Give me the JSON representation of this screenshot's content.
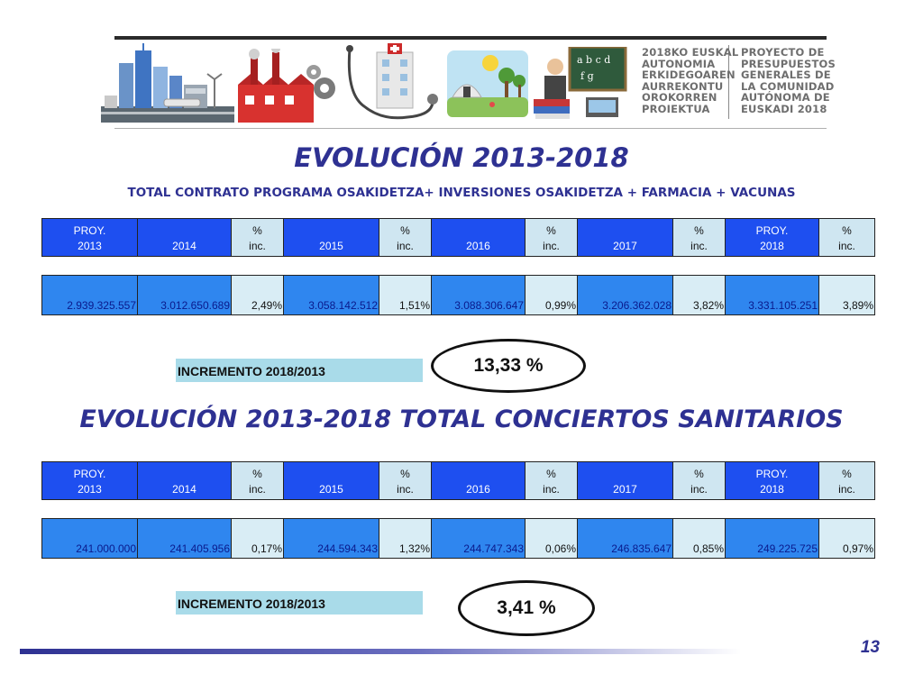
{
  "header": {
    "basque_text": "2018KO EUSKAL\nAUTONOMIA\nERKIDEGOAREN\nAURREKONTU\nOROKORREN\nPROIEKTUA",
    "spanish_text": "PROYECTO DE\nPRESUPUESTOS\nGENERALES DE\nLA COMUNIDAD\nAUTÓNOMA DE\nEUSKADI 2018",
    "illustrations": [
      "city-icon",
      "factory-icon",
      "hospital-stethoscope-icon",
      "park-icon",
      "classroom-icon"
    ]
  },
  "section1": {
    "title": "EVOLUCIÓN 2013-2018",
    "subtitle": "TOTAL CONTRATO PROGRAMA OSAKIDETZA+ INVERSIONES OSAKIDETZA + FARMACIA + VACUNAS",
    "headers": [
      {
        "l1": "PROY.",
        "l2": "2013"
      },
      {
        "l1": "",
        "l2": "2014"
      },
      {
        "l1": "%",
        "l2": "inc."
      },
      {
        "l1": "",
        "l2": "2015"
      },
      {
        "l1": "%",
        "l2": "inc."
      },
      {
        "l1": "",
        "l2": "2016"
      },
      {
        "l1": "%",
        "l2": "inc."
      },
      {
        "l1": "",
        "l2": "2017"
      },
      {
        "l1": "%",
        "l2": "inc."
      },
      {
        "l1": "PROY.",
        "l2": "2018"
      },
      {
        "l1": "%",
        "l2": "inc."
      }
    ],
    "values": [
      "2.939.325.557",
      "3.012.650.689",
      "2,49%",
      "3.058.142.512",
      "1,51%",
      "3.088.306.647",
      "0,99%",
      "3.206.362.028",
      "3,82%",
      "3.331.105.251",
      "3,89%"
    ],
    "increment_label": "INCREMENTO 2018/2013",
    "increment_value": "13,33 %"
  },
  "section2": {
    "title": "EVOLUCIÓN 2013-2018 TOTAL CONCIERTOS  SANITARIOS",
    "headers": [
      {
        "l1": "PROY.",
        "l2": "2013"
      },
      {
        "l1": "",
        "l2": "2014"
      },
      {
        "l1": "%",
        "l2": "inc."
      },
      {
        "l1": "",
        "l2": "2015"
      },
      {
        "l1": "%",
        "l2": "inc."
      },
      {
        "l1": "",
        "l2": "2016"
      },
      {
        "l1": "%",
        "l2": "inc."
      },
      {
        "l1": "",
        "l2": "2017"
      },
      {
        "l1": "%",
        "l2": "inc."
      },
      {
        "l1": "PROY.",
        "l2": "2018"
      },
      {
        "l1": "%",
        "l2": "inc."
      }
    ],
    "values": [
      "241.000.000",
      "241.405.956",
      "0,17%",
      "244.594.343",
      "1,32%",
      "244.747.343",
      "0,06%",
      "246.835.647",
      "0,85%",
      "249.225.725",
      "0,97%"
    ],
    "increment_label": "INCREMENTO 2018/2013",
    "increment_value": "3,41 %"
  },
  "footer": {
    "page_number": "13"
  }
}
